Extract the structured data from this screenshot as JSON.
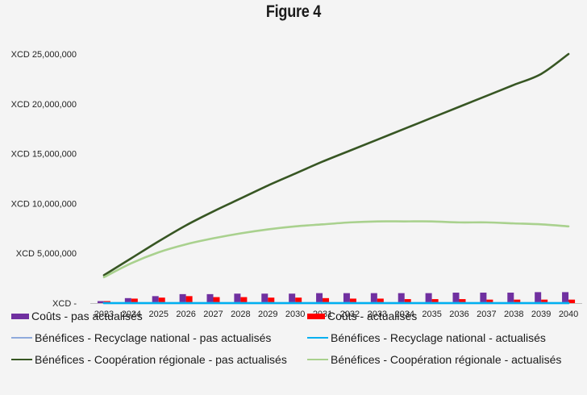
{
  "title": "Figure 4",
  "chart_data": {
    "type": "bar+line",
    "categories": [
      "2023",
      "2024",
      "2025",
      "2026",
      "2027",
      "2028",
      "2029",
      "2030",
      "2031",
      "2032",
      "2033",
      "2034",
      "2035",
      "2036",
      "2037",
      "2038",
      "2039",
      "2040"
    ],
    "y_ticks": [
      {
        "value": 0,
        "label": "XCD -"
      },
      {
        "value": 5000000,
        "label": "XCD 5,000,000"
      },
      {
        "value": 10000000,
        "label": "XCD 10,000,000"
      },
      {
        "value": 15000000,
        "label": "XCD 15,000,000"
      },
      {
        "value": 20000000,
        "label": "XCD 20,000,000"
      },
      {
        "value": 25000000,
        "label": "XCD 25,000,000"
      }
    ],
    "ylim": [
      0,
      25000000
    ],
    "grid": false,
    "legend_position": "bottom",
    "series": [
      {
        "name": "Coûts - pas actualisés",
        "kind": "bar",
        "color": "#7030a0",
        "values": [
          200000,
          500000,
          700000,
          900000,
          900000,
          950000,
          950000,
          950000,
          1000000,
          1000000,
          1000000,
          1000000,
          1000000,
          1050000,
          1050000,
          1050000,
          1100000,
          1100000
        ]
      },
      {
        "name": "Coûts - actualisés",
        "kind": "bar",
        "color": "#ff0000",
        "values": [
          200000,
          450000,
          550000,
          700000,
          600000,
          600000,
          550000,
          550000,
          500000,
          450000,
          450000,
          400000,
          400000,
          400000,
          350000,
          350000,
          350000,
          350000
        ]
      },
      {
        "name": "Bénéfices - Recyclage national - pas actualisés",
        "kind": "line",
        "color": "#8faadc",
        "values": [
          0,
          0,
          0,
          0,
          0,
          0,
          0,
          0,
          0,
          0,
          0,
          0,
          0,
          0,
          0,
          0,
          0,
          0
        ]
      },
      {
        "name": "Bénéfices - Recyclage national - actualisés",
        "kind": "line",
        "color": "#00b0f0",
        "values": [
          0,
          0,
          0,
          0,
          0,
          0,
          0,
          0,
          0,
          0,
          0,
          0,
          0,
          0,
          0,
          0,
          0,
          0
        ]
      },
      {
        "name": "Bénéfices - Coopération régionale - pas actualisés",
        "kind": "line",
        "color": "#375623",
        "values": [
          2800000,
          4500000,
          6200000,
          7800000,
          9200000,
          10500000,
          11800000,
          13000000,
          14200000,
          15300000,
          16400000,
          17500000,
          18600000,
          19700000,
          20800000,
          21900000,
          23000000,
          25000000
        ]
      },
      {
        "name": "Bénéfices - Coopération régionale - actualisés",
        "kind": "line",
        "color": "#a9d18e",
        "values": [
          2600000,
          4000000,
          5100000,
          5900000,
          6500000,
          7000000,
          7400000,
          7700000,
          7900000,
          8100000,
          8200000,
          8200000,
          8200000,
          8100000,
          8100000,
          8000000,
          7900000,
          7700000
        ]
      }
    ]
  }
}
